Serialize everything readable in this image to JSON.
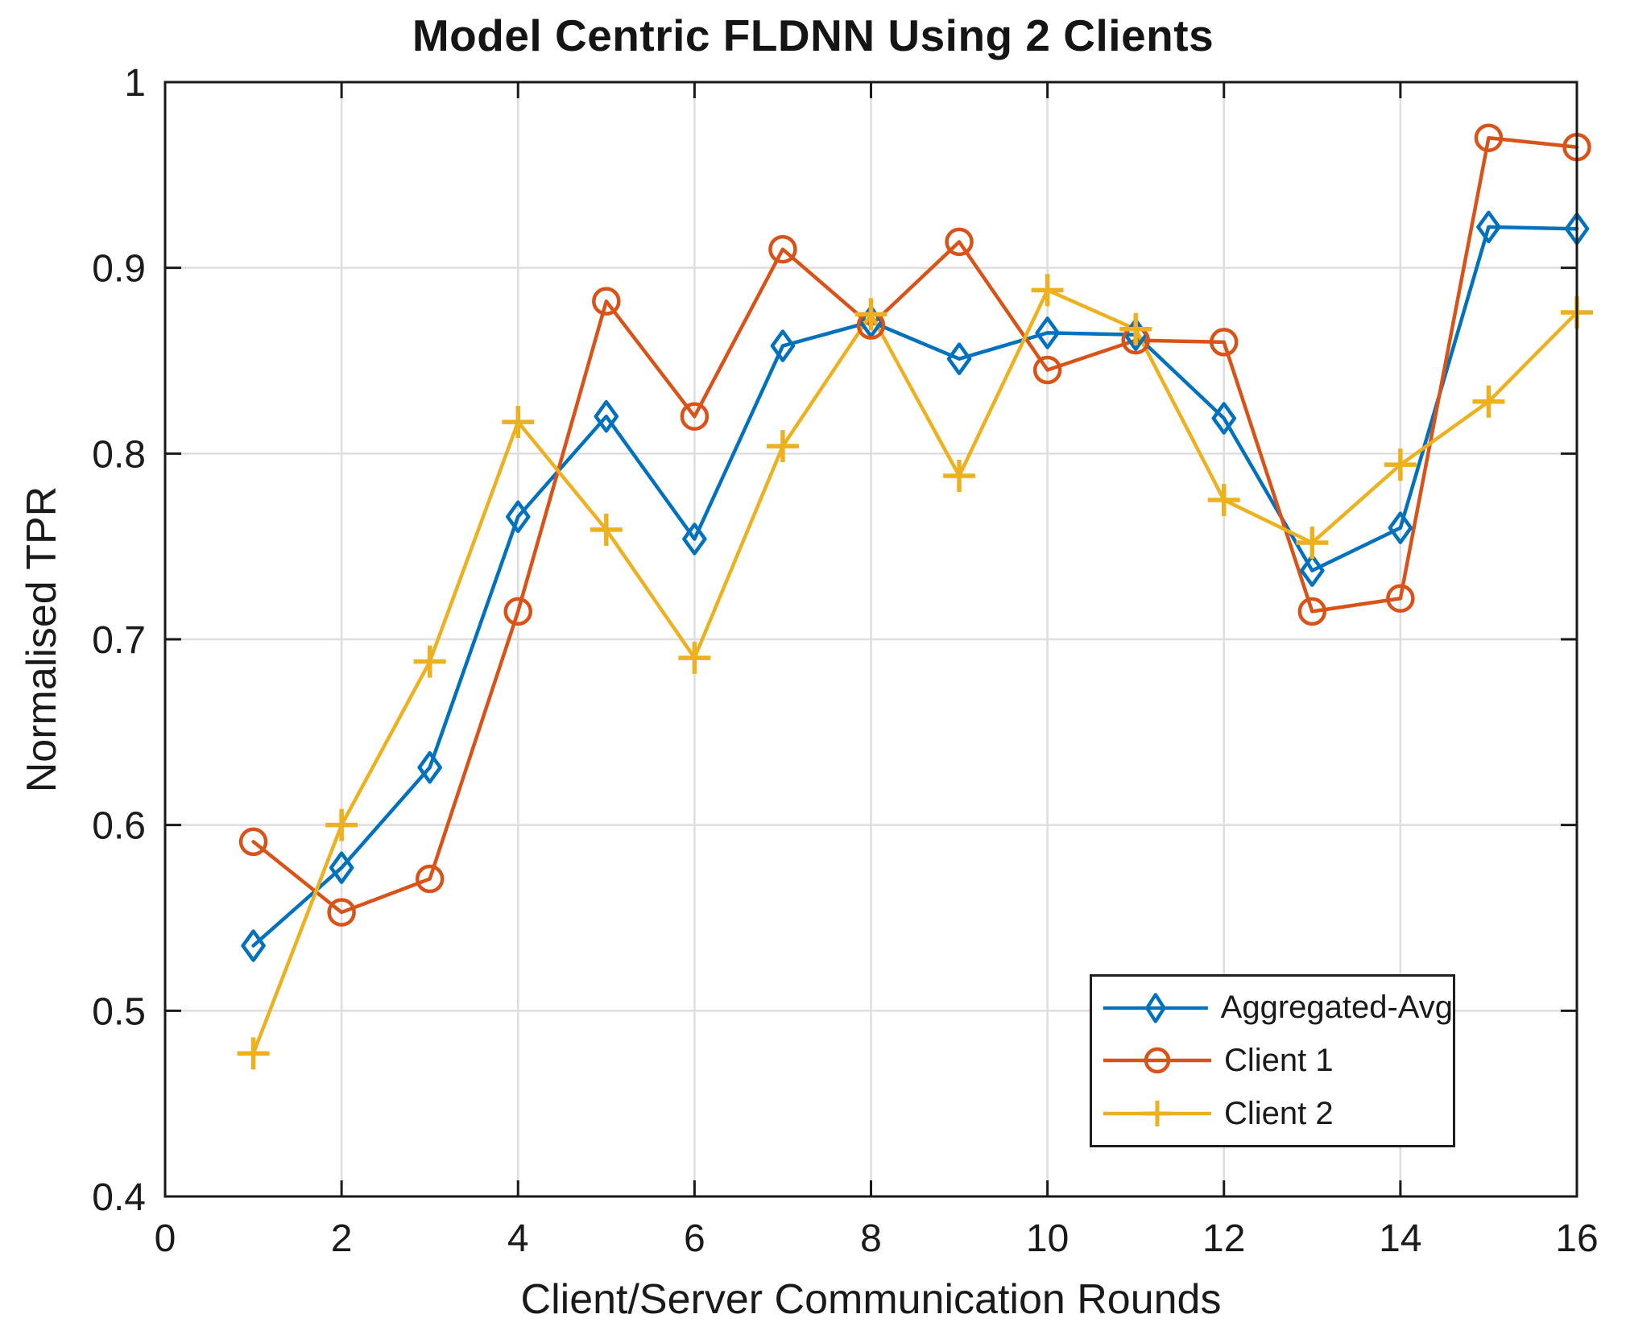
{
  "title": "Model Centric FLDNN Using 2 Clients",
  "chart_data": {
    "type": "line",
    "title": "Model Centric FLDNN Using 2 Clients",
    "xlabel": "Client/Server Communication Rounds",
    "ylabel": "Normalised TPR",
    "xlim": [
      0,
      16
    ],
    "ylim": [
      0.4,
      1.0
    ],
    "xticks": [
      0,
      2,
      4,
      6,
      8,
      10,
      12,
      14,
      16
    ],
    "xtick_labels": [
      "0",
      "2",
      "4",
      "6",
      "8",
      "10",
      "12",
      "14",
      "16"
    ],
    "yticks": [
      0.4,
      0.5,
      0.6,
      0.7,
      0.8,
      0.9,
      1.0
    ],
    "ytick_labels": [
      "0.4",
      "0.5",
      "0.6",
      "0.7",
      "0.8",
      "0.9",
      "1"
    ],
    "grid": true,
    "legend_position": "lower right",
    "x": [
      1,
      2,
      3,
      4,
      5,
      6,
      7,
      8,
      9,
      10,
      11,
      12,
      13,
      14,
      15,
      16
    ],
    "series": [
      {
        "name": "Aggregated-Avg",
        "color": "#0072BD",
        "marker": "diamond",
        "values": [
          0.535,
          0.577,
          0.631,
          0.766,
          0.82,
          0.754,
          0.858,
          0.871,
          0.851,
          0.865,
          0.864,
          0.819,
          0.737,
          0.76,
          0.922,
          0.921
        ]
      },
      {
        "name": "Client 1",
        "color": "#D95319",
        "marker": "circle",
        "values": [
          0.591,
          0.553,
          0.571,
          0.715,
          0.882,
          0.82,
          0.91,
          0.869,
          0.914,
          0.845,
          0.861,
          0.86,
          0.715,
          0.722,
          0.97,
          0.965
        ]
      },
      {
        "name": "Client 2",
        "color": "#EDB120",
        "marker": "plus",
        "values": [
          0.477,
          0.6,
          0.688,
          0.817,
          0.759,
          0.69,
          0.804,
          0.875,
          0.788,
          0.888,
          0.867,
          0.775,
          0.752,
          0.794,
          0.828,
          0.876
        ]
      }
    ],
    "colors": {
      "grid": "#DEDEDE",
      "axis": "#1a1a1a",
      "background": "#FFFFFF"
    }
  }
}
